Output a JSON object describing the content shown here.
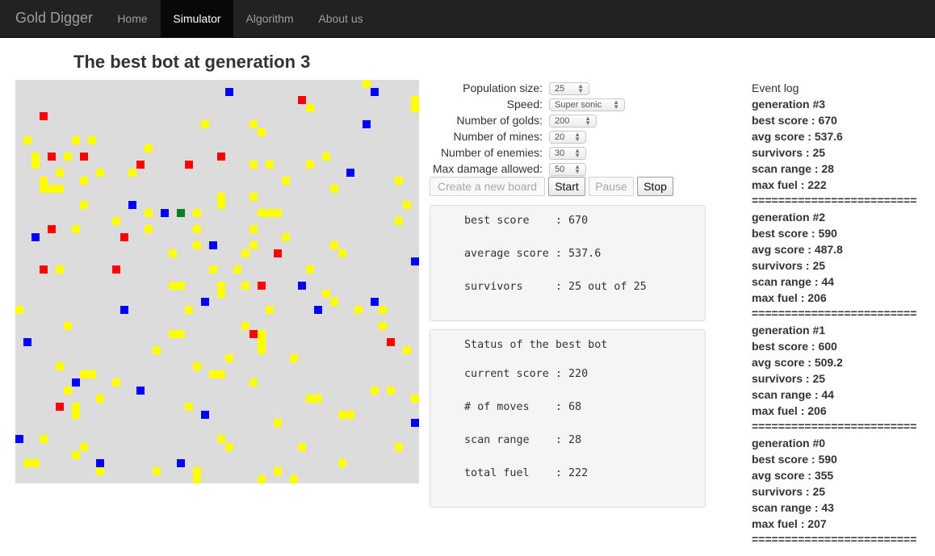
{
  "navbar": {
    "brand": "Gold Digger",
    "items": [
      {
        "label": "Home",
        "active": false
      },
      {
        "label": "Simulator",
        "active": true
      },
      {
        "label": "Algorithm",
        "active": false
      },
      {
        "label": "About us",
        "active": false
      }
    ]
  },
  "page_title": "The best bot at generation 3",
  "colors": {
    "board_background": "#dcdcdc",
    "gold": "#ffff00",
    "mine": "#ff0000",
    "enemy": "#0000ff",
    "bot": "#007f1f"
  },
  "controls": {
    "population_size": {
      "label": "Population size:",
      "value": "25"
    },
    "speed": {
      "label": "Speed:",
      "value": "Super sonic"
    },
    "number_of_golds": {
      "label": "Number of golds:",
      "value": "200"
    },
    "number_of_mines": {
      "label": "Number of mines:",
      "value": "20"
    },
    "number_of_enemies": {
      "label": "Number of enemies:",
      "value": "30"
    },
    "max_damage_allowed": {
      "label": "Max damage allowed:",
      "value": "50"
    }
  },
  "buttons": {
    "create_board": "Create a new board",
    "start": "Start",
    "pause": "Pause",
    "stop": "Stop"
  },
  "summary_panel": {
    "best_score": "best score    : 670",
    "average_score": "average score : 537.6",
    "survivors": "survivors     : 25 out of 25"
  },
  "status_panel": {
    "title": "Status of the best bot",
    "current_score": "current score : 220",
    "moves": "# of moves    : 68",
    "scan_range": "scan range    : 28",
    "total_fuel": "total fuel    : 222"
  },
  "event_log": {
    "title": "Event log",
    "generations": [
      {
        "header": "generation #3",
        "best": "best score : 670",
        "avg": "avg score : 537.6",
        "survivors": "survivors : 25",
        "scan": "scan range : 28",
        "fuel": "max fuel : 222"
      },
      {
        "header": "generation #2",
        "best": "best score : 590",
        "avg": "avg score : 487.8",
        "survivors": "survivors : 25",
        "scan": "scan range : 44",
        "fuel": "max fuel : 206"
      },
      {
        "header": "generation #1",
        "best": "best score : 600",
        "avg": "avg score : 509.2",
        "survivors": "survivors : 25",
        "scan": "scan range : 44",
        "fuel": "max fuel : 206"
      },
      {
        "header": "generation #0",
        "best": "best score : 590",
        "avg": "avg score : 355",
        "survivors": "survivors : 25",
        "scan": "scan range : 43",
        "fuel": "max fuel : 207"
      }
    ],
    "separator": "========================="
  },
  "board": {
    "grid_size": 50,
    "bot": [
      [
        20,
        16
      ]
    ],
    "mines": [
      [
        35,
        2
      ],
      [
        3,
        4
      ],
      [
        4,
        9
      ],
      [
        8,
        9
      ],
      [
        25,
        9
      ],
      [
        15,
        10
      ],
      [
        21,
        10
      ],
      [
        4,
        18
      ],
      [
        13,
        19
      ],
      [
        32,
        21
      ],
      [
        3,
        23
      ],
      [
        12,
        23
      ],
      [
        30,
        25
      ],
      [
        29,
        31
      ],
      [
        46,
        32
      ],
      [
        5,
        40
      ]
    ],
    "enemies": [
      [
        26,
        1
      ],
      [
        44,
        1
      ],
      [
        43,
        5
      ],
      [
        41,
        11
      ],
      [
        14,
        15
      ],
      [
        18,
        16
      ],
      [
        2,
        19
      ],
      [
        24,
        20
      ],
      [
        49,
        22
      ],
      [
        35,
        25
      ],
      [
        23,
        27
      ],
      [
        44,
        27
      ],
      [
        13,
        28
      ],
      [
        37,
        28
      ],
      [
        1,
        32
      ],
      [
        7,
        37
      ],
      [
        15,
        38
      ],
      [
        23,
        41
      ],
      [
        49,
        42
      ],
      [
        0,
        44
      ],
      [
        10,
        47
      ],
      [
        20,
        47
      ]
    ],
    "golds": [
      [
        43,
        0
      ],
      [
        36,
        3
      ],
      [
        49,
        2
      ],
      [
        49,
        3
      ],
      [
        23,
        5
      ],
      [
        29,
        5
      ],
      [
        30,
        6
      ],
      [
        1,
        7
      ],
      [
        7,
        7
      ],
      [
        9,
        7
      ],
      [
        16,
        8
      ],
      [
        2,
        9
      ],
      [
        2,
        10
      ],
      [
        6,
        9
      ],
      [
        38,
        9
      ],
      [
        5,
        11
      ],
      [
        10,
        11
      ],
      [
        14,
        11
      ],
      [
        29,
        10
      ],
      [
        31,
        10
      ],
      [
        36,
        10
      ],
      [
        33,
        12
      ],
      [
        47,
        12
      ],
      [
        3,
        12
      ],
      [
        8,
        12
      ],
      [
        39,
        13
      ],
      [
        3,
        13
      ],
      [
        4,
        13
      ],
      [
        5,
        13
      ],
      [
        25,
        14
      ],
      [
        29,
        14
      ],
      [
        25,
        15
      ],
      [
        48,
        15
      ],
      [
        8,
        15
      ],
      [
        16,
        16
      ],
      [
        22,
        16
      ],
      [
        30,
        16
      ],
      [
        31,
        16
      ],
      [
        32,
        16
      ],
      [
        12,
        17
      ],
      [
        47,
        17
      ],
      [
        16,
        18
      ],
      [
        22,
        18
      ],
      [
        7,
        18
      ],
      [
        29,
        18
      ],
      [
        33,
        19
      ],
      [
        22,
        20
      ],
      [
        29,
        20
      ],
      [
        39,
        20
      ],
      [
        19,
        21
      ],
      [
        28,
        21
      ],
      [
        40,
        21
      ],
      [
        5,
        23
      ],
      [
        24,
        23
      ],
      [
        27,
        23
      ],
      [
        27,
        23
      ],
      [
        36,
        23
      ],
      [
        19,
        25
      ],
      [
        20,
        25
      ],
      [
        25,
        25
      ],
      [
        28,
        25
      ],
      [
        25,
        26
      ],
      [
        38,
        26
      ],
      [
        39,
        27
      ],
      [
        0,
        28
      ],
      [
        21,
        28
      ],
      [
        31,
        28
      ],
      [
        42,
        28
      ],
      [
        45,
        28
      ],
      [
        6,
        30
      ],
      [
        28,
        30
      ],
      [
        45,
        30
      ],
      [
        19,
        31
      ],
      [
        20,
        31
      ],
      [
        30,
        31
      ],
      [
        30,
        32
      ],
      [
        30,
        33
      ],
      [
        48,
        33
      ],
      [
        17,
        33
      ],
      [
        26,
        34
      ],
      [
        34,
        34
      ],
      [
        5,
        35
      ],
      [
        22,
        35
      ],
      [
        8,
        36
      ],
      [
        9,
        36
      ],
      [
        24,
        36
      ],
      [
        25,
        36
      ],
      [
        12,
        37
      ],
      [
        29,
        37
      ],
      [
        6,
        38
      ],
      [
        44,
        38
      ],
      [
        46,
        38
      ],
      [
        10,
        39
      ],
      [
        36,
        39
      ],
      [
        37,
        39
      ],
      [
        49,
        39
      ],
      [
        7,
        40
      ],
      [
        21,
        40
      ],
      [
        40,
        41
      ],
      [
        41,
        41
      ],
      [
        7,
        41
      ],
      [
        32,
        42
      ],
      [
        25,
        44
      ],
      [
        3,
        44
      ],
      [
        8,
        45
      ],
      [
        26,
        45
      ],
      [
        35,
        45
      ],
      [
        47,
        45
      ],
      [
        7,
        46
      ],
      [
        1,
        47
      ],
      [
        2,
        47
      ],
      [
        10,
        48
      ],
      [
        17,
        48
      ],
      [
        22,
        48
      ],
      [
        32,
        48
      ],
      [
        40,
        47
      ],
      [
        22,
        49
      ],
      [
        30,
        49
      ],
      [
        34,
        49
      ]
    ]
  }
}
